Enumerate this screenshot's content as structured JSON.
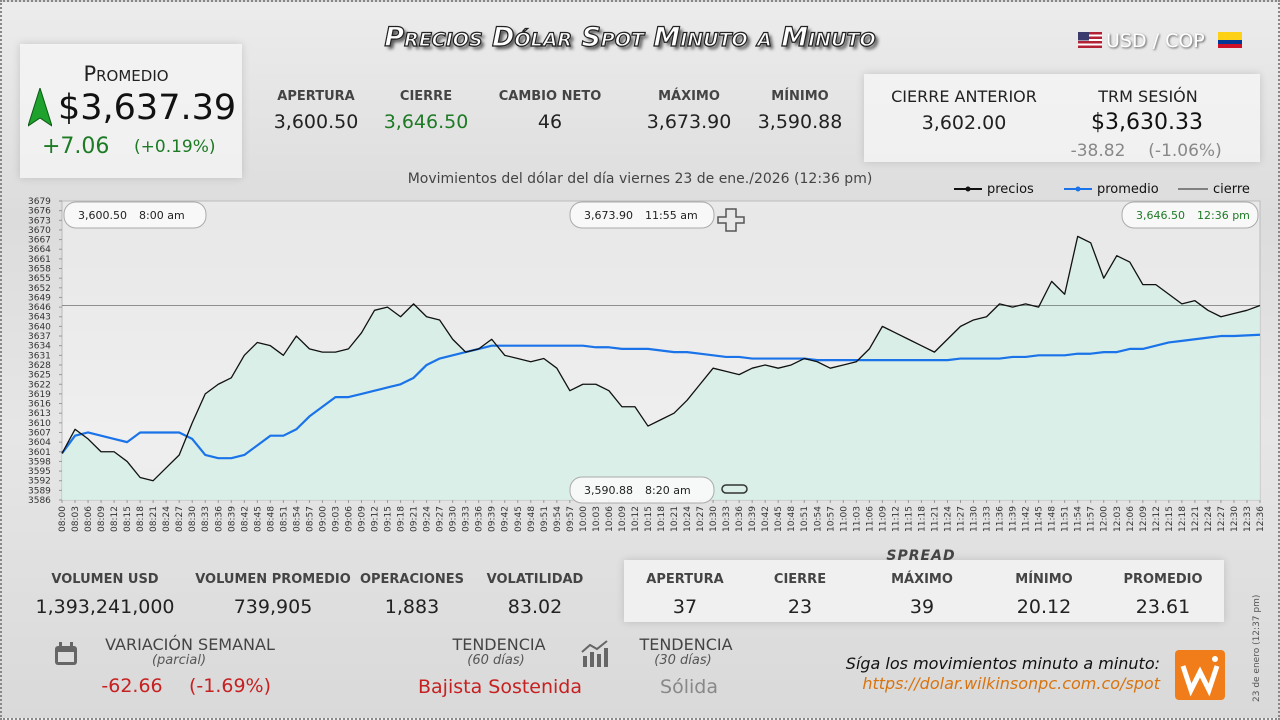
{
  "header": {
    "title": "Precios Dólar Spot Minuto a Minuto",
    "pair": "USD / COP"
  },
  "promedio": {
    "label": "Promedio",
    "value": "$3,637.39",
    "change": "+7.06",
    "change_pct": "(+0.19%)"
  },
  "session": [
    {
      "label": "APERTURA",
      "value": "3,600.50"
    },
    {
      "label": "CIERRE",
      "value": "3,646.50"
    },
    {
      "label": "CAMBIO NETO",
      "value": "46"
    },
    {
      "label": "MÁXIMO",
      "value": "3,673.90"
    },
    {
      "label": "MÍNIMO",
      "value": "3,590.88"
    }
  ],
  "cierre_anterior": {
    "label": "CIERRE ANTERIOR",
    "value": "3,602.00"
  },
  "trm": {
    "label": "TRM SESIÓN",
    "value": "$3,630.33",
    "change": "-38.82",
    "change_pct": "(-1.06%)"
  },
  "chart_data": {
    "type": "line",
    "subtitle": "Movimientos del dólar del día viernes 23 de ene./2026 (12:36 pm)",
    "categories": [
      "08:00",
      "08:03",
      "08:06",
      "08:09",
      "08:12",
      "08:15",
      "08:18",
      "08:21",
      "08:24",
      "08:27",
      "08:30",
      "08:33",
      "08:36",
      "08:39",
      "08:42",
      "08:45",
      "08:48",
      "08:51",
      "08:54",
      "08:57",
      "09:00",
      "09:03",
      "09:06",
      "09:09",
      "09:12",
      "09:15",
      "09:18",
      "09:21",
      "09:24",
      "09:27",
      "09:30",
      "09:33",
      "09:36",
      "09:39",
      "09:42",
      "09:45",
      "09:48",
      "09:51",
      "09:54",
      "09:57",
      "10:00",
      "10:03",
      "10:06",
      "10:09",
      "10:12",
      "10:15",
      "10:18",
      "10:21",
      "10:24",
      "10:27",
      "10:30",
      "10:33",
      "10:36",
      "10:39",
      "10:42",
      "10:45",
      "10:48",
      "10:51",
      "10:54",
      "10:57",
      "11:00",
      "11:03",
      "11:06",
      "11:09",
      "11:12",
      "11:15",
      "11:18",
      "11:21",
      "11:24",
      "11:27",
      "11:30",
      "11:33",
      "11:36",
      "11:39",
      "11:42",
      "11:45",
      "11:48",
      "11:51",
      "11:54",
      "11:57",
      "12:00",
      "12:03",
      "12:06",
      "12:09",
      "12:12",
      "12:15",
      "12:18",
      "12:21",
      "12:24",
      "12:27",
      "12:30",
      "12:33",
      "12:36"
    ],
    "series": [
      {
        "name": "precios",
        "color": "#111111",
        "values": [
          3600.5,
          3608,
          3605,
          3601,
          3601,
          3598,
          3593,
          3592,
          3596,
          3600,
          3610,
          3619,
          3622,
          3624,
          3631,
          3635,
          3634,
          3631,
          3637,
          3633,
          3632,
          3632,
          3633,
          3638,
          3645,
          3646,
          3643,
          3647,
          3643,
          3642,
          3636,
          3632,
          3633,
          3636,
          3631,
          3630,
          3629,
          3630,
          3627,
          3620,
          3622,
          3622,
          3620,
          3615,
          3615,
          3609,
          3611,
          3613,
          3617,
          3622,
          3627,
          3626,
          3625,
          3627,
          3628,
          3627,
          3628,
          3630,
          3629,
          3627,
          3628,
          3629,
          3633,
          3640,
          3638,
          3636,
          3634,
          3632,
          3636,
          3640,
          3642,
          3643,
          3647,
          3646,
          3647,
          3646,
          3654,
          3650,
          3668,
          3666,
          3655,
          3662,
          3660,
          3653,
          3653,
          3650,
          3647,
          3648,
          3645,
          3643,
          3644,
          3645,
          3646.5
        ]
      },
      {
        "name": "promedio",
        "color": "#1a73e8",
        "values": [
          3600.5,
          3606,
          3607,
          3606,
          3605,
          3604,
          3607,
          3607,
          3607,
          3607,
          3605,
          3600,
          3599,
          3599,
          3600,
          3603,
          3606,
          3606,
          3608,
          3612,
          3615,
          3618,
          3618,
          3619,
          3620,
          3621,
          3622,
          3624,
          3628,
          3630,
          3631,
          3632,
          3633,
          3634,
          3634,
          3634,
          3634,
          3634,
          3634,
          3634,
          3634,
          3633.5,
          3633.5,
          3633,
          3633,
          3633,
          3632.5,
          3632,
          3632,
          3631.5,
          3631,
          3630.5,
          3630.5,
          3630,
          3630,
          3630,
          3630,
          3630,
          3629.5,
          3629.5,
          3629.5,
          3629.5,
          3629.5,
          3629.5,
          3629.5,
          3629.5,
          3629.5,
          3629.5,
          3629.5,
          3630,
          3630,
          3630,
          3630,
          3630.5,
          3630.5,
          3631,
          3631,
          3631,
          3631.5,
          3631.5,
          3632,
          3632,
          3633,
          3633,
          3634,
          3635,
          3635.5,
          3636,
          3636.5,
          3637,
          3637,
          3637.2,
          3637.39
        ]
      }
    ],
    "reference_line": {
      "name": "cierre",
      "color": "#222222",
      "value": 3646.5
    },
    "ylim": [
      3586,
      3679
    ],
    "yticks": [
      3586,
      3589,
      3592,
      3595,
      3598,
      3601,
      3604,
      3607,
      3610,
      3613,
      3616,
      3619,
      3622,
      3625,
      3628,
      3631,
      3634,
      3637,
      3640,
      3643,
      3646,
      3649,
      3652,
      3655,
      3658,
      3661,
      3664,
      3667,
      3670,
      3673,
      3676,
      3679
    ],
    "fill_color": "#d6efe6",
    "annotations": [
      {
        "price": "3,600.50",
        "time": "8:00 am"
      },
      {
        "price": "3,673.90",
        "time": "11:55 am"
      },
      {
        "price": "3,646.50",
        "time": "12:36 pm"
      },
      {
        "price": "3,590.88",
        "time": "8:20 am"
      }
    ]
  },
  "volume": [
    {
      "label": "VOLUMEN USD",
      "value": "1,393,241,000"
    },
    {
      "label": "VOLUMEN PROMEDIO",
      "value": "739,905"
    },
    {
      "label": "OPERACIONES",
      "value": "1,883"
    },
    {
      "label": "VOLATILIDAD",
      "value": "83.02"
    }
  ],
  "spread": {
    "title": "SPREAD",
    "items": [
      {
        "label": "APERTURA",
        "value": "37"
      },
      {
        "label": "CIERRE",
        "value": "23"
      },
      {
        "label": "MÁXIMO",
        "value": "39"
      },
      {
        "label": "MÍNIMO",
        "value": "20.12"
      },
      {
        "label": "PROMEDIO",
        "value": "23.61"
      }
    ]
  },
  "weekly": {
    "label": "VARIACIÓN SEMANAL",
    "note": "(parcial)",
    "change": "-62.66",
    "change_pct": "(-1.69%)"
  },
  "trend60": {
    "label": "TENDENCIA",
    "note": "(60 días)",
    "value": "Bajista Sostenida"
  },
  "trend30": {
    "label": "TENDENCIA",
    "note": "(30 días)",
    "value": "Sólida"
  },
  "footer": {
    "text": "Síga los movimientos minuto a minuto:",
    "url": "https://dolar.wilkinsonpc.com.co/spot",
    "stamp": "23 de enero (12:37 pm)"
  }
}
